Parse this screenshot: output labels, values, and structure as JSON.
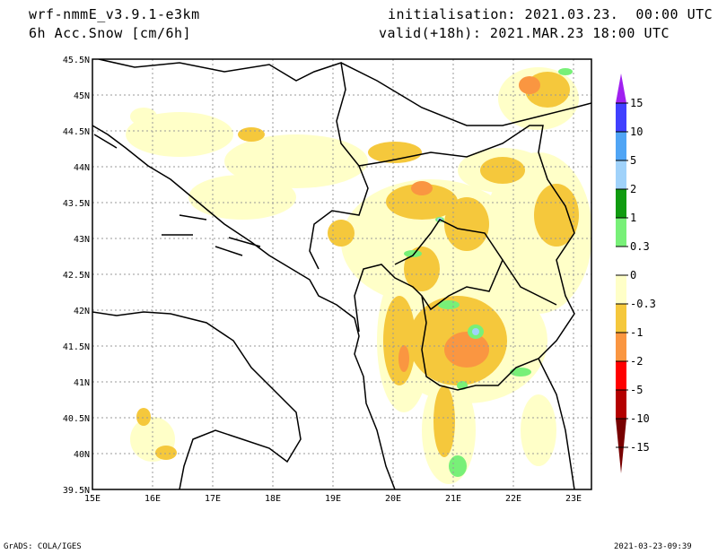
{
  "header": {
    "model": "wrf-nmmE_v3.9.1-e3km",
    "variable": "6h Acc.Snow [cm/6h]",
    "initialisation": "initialisation: 2021.03.23.  00:00 UTC",
    "valid": "valid(+18h): 2021.MAR.23 18:00 UTC"
  },
  "axes": {
    "lat_labels": [
      "45.5N",
      "45N",
      "44.5N",
      "44N",
      "43.5N",
      "43N",
      "42.5N",
      "42N",
      "41.5N",
      "41N",
      "40.5N",
      "40N",
      "39.5N"
    ],
    "lon_labels": [
      "15E",
      "16E",
      "17E",
      "18E",
      "19E",
      "20E",
      "21E",
      "22E",
      "23E"
    ]
  },
  "colorbar": {
    "labels": [
      "15",
      "10",
      "5",
      "2",
      "1",
      "0.3",
      "0",
      "-0.3",
      "-1",
      "-2",
      "-5",
      "-10",
      "-15"
    ],
    "colors": {
      "top_arrow": "#a020f0",
      "15_10": "#4040ff",
      "10_5": "#50a5f5",
      "5_2": "#a0d2fa",
      "2_1": "#109b10",
      "1_0.3": "#78f078",
      "0.3_-0.3": "#ffffff",
      "-0.3_-1": "#ffffc8",
      "-1_-2": "#f5c83c",
      "-2_-5": "#fa9641",
      "-5_-10": "#ff0000",
      "-10_-15": "#b40000",
      "bottom_arrow": "#780000"
    }
  },
  "footer": {
    "left": "GrADS: COLA/IGES",
    "right": "2021-03-23-09:39"
  }
}
